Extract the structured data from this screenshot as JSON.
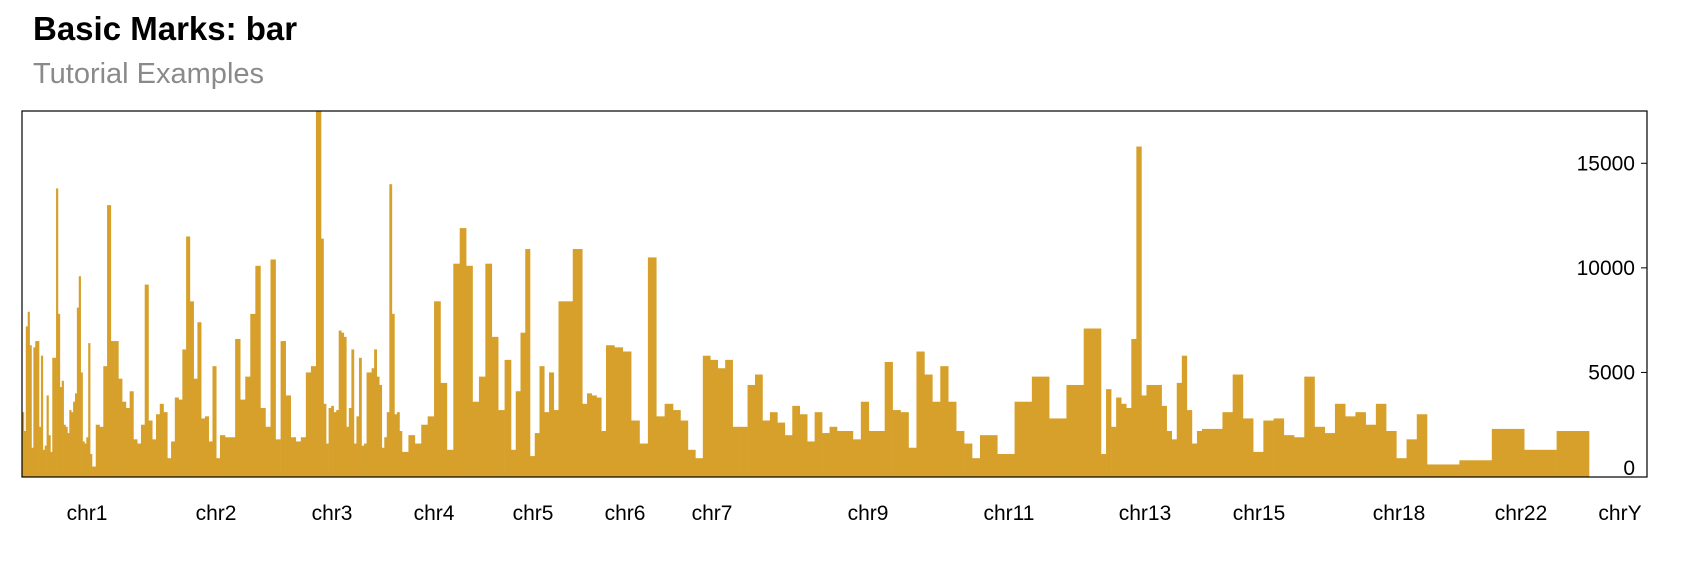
{
  "chart_data": {
    "type": "bar",
    "title": "Basic Marks: bar",
    "subtitle": "Tutorial Examples",
    "color": "#d6a02a",
    "ylim": [
      0,
      17500
    ],
    "yticks": [
      0,
      5000,
      10000,
      15000
    ],
    "axis_position": "right",
    "chromosomes": [
      {
        "name": "chr1",
        "label": "chr1",
        "values": [
          3100,
          2200,
          7200,
          7900,
          6300,
          1400,
          6200,
          6500,
          6500,
          2400,
          5800,
          1300,
          1500,
          3900,
          2000,
          1200,
          5700,
          5700,
          13800,
          7800,
          4300,
          4600,
          2500,
          2400,
          2100,
          3200,
          3100,
          3600,
          4000,
          8100,
          9600,
          5000,
          1700,
          1600,
          1900,
          6400,
          1100
        ]
      },
      {
        "name": "chr2",
        "label": "chr2",
        "values": [
          500,
          2500,
          2400,
          5300,
          13000,
          6500,
          6500,
          4700,
          3600,
          3300,
          4100,
          1800,
          1600,
          2500,
          9200,
          2700,
          1800,
          3000,
          3500,
          3100,
          900,
          1700,
          3800,
          3700,
          6100,
          11500,
          8400,
          4700,
          7400,
          2800,
          2900,
          1700,
          5300,
          900
        ]
      },
      {
        "name": "chr3",
        "label": "chr3",
        "values": [
          2000,
          1900,
          1900,
          6600,
          3700,
          4800,
          7800,
          10100,
          3300,
          2400,
          10400,
          1800,
          6500,
          3900,
          1900,
          1700,
          1900,
          5000,
          5300,
          17500
        ]
      },
      {
        "name": "chr4",
        "label": "chr4",
        "values": [
          11400,
          3500,
          1600,
          3300,
          3400,
          3100,
          3200,
          7000,
          6900,
          6700,
          2400,
          3300,
          6100,
          1600,
          2900,
          5700,
          1500,
          1600,
          5000,
          5000,
          5200,
          6100,
          4800,
          4400,
          1400,
          1900,
          3100,
          14000,
          7800,
          3000,
          3100,
          2200
        ]
      },
      {
        "name": "chr5",
        "label": "chr5",
        "values": [
          1200,
          2000,
          1600,
          2500,
          2900,
          8400,
          4500,
          1300,
          10200,
          11900,
          10100,
          3600,
          4800,
          10200,
          6700,
          3200,
          5600
        ]
      },
      {
        "name": "chr6",
        "label": "chr6",
        "values": [
          1300,
          4100,
          6900,
          10900,
          1000,
          2100,
          5300,
          3100,
          5000,
          3200,
          8400,
          8400,
          8400,
          10900,
          10900,
          3500,
          4000,
          3900,
          3800,
          2200
        ]
      },
      {
        "name": "chr7",
        "label": "chr7",
        "values": [
          6300,
          6200,
          6000,
          2700,
          1600,
          10500,
          2900,
          3500
        ]
      },
      {
        "name": "chr9",
        "label": "chr9",
        "values": [
          3200,
          2700,
          1300,
          900,
          5800,
          5600,
          5200,
          5600,
          2400,
          2400,
          4400,
          4900,
          2700,
          3100,
          2600,
          2000,
          3400,
          3000,
          1700,
          3100,
          2100,
          2400
        ]
      },
      {
        "name": "chr11",
        "label": "chr11",
        "values": [
          2200,
          2200,
          1800,
          3600,
          2200,
          2200,
          5500,
          3200,
          3100,
          1400,
          6000,
          4900,
          3600,
          5300,
          3600,
          2200,
          1600,
          900
        ]
      },
      {
        "name": "chr13",
        "label": "chr13",
        "values": [
          2000,
          1100,
          3600,
          4800,
          2800,
          4400,
          7100
        ]
      },
      {
        "name": "chr15",
        "label": "chr15",
        "values": [
          1100,
          4200,
          2400,
          3800,
          3500,
          3300,
          6600,
          15800,
          3900,
          4400,
          4400,
          4400,
          3400,
          2200,
          1800,
          4500,
          5800,
          3200,
          1600,
          2200
        ]
      },
      {
        "name": "chr18",
        "label": "chr18",
        "values": [
          2300,
          2300,
          3100,
          4900,
          2800,
          1200,
          2700,
          2800,
          2000,
          1900,
          4800,
          2400,
          2100,
          3500,
          2900,
          3100,
          2500,
          3500,
          2200,
          900,
          1800,
          3000
        ]
      },
      {
        "name": "chr22",
        "label": "chr22",
        "values": [
          600,
          800,
          2300,
          1300,
          2200
        ]
      },
      {
        "name": "chrY",
        "label": "chrY",
        "values": []
      }
    ]
  }
}
